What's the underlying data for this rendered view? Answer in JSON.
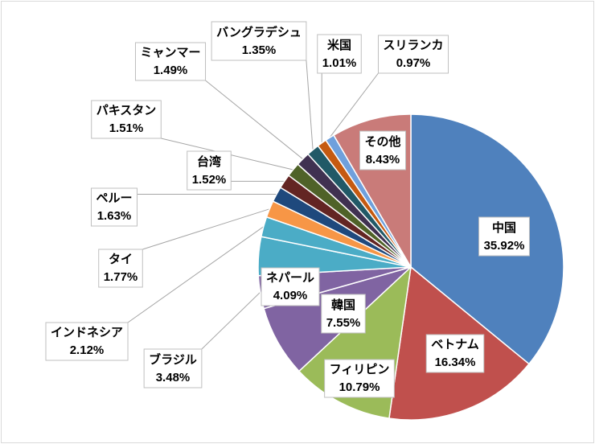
{
  "chart_data": {
    "type": "pie",
    "start_angle_deg": 0,
    "direction": "clockwise",
    "labels": [
      "中国",
      "ベトナム",
      "フィリピン",
      "韓国",
      "ブラジル",
      "ネパール",
      "インドネシア",
      "タイ",
      "ペルー",
      "台湾",
      "パキスタン",
      "ミャンマー",
      "バングラデシュ",
      "米国",
      "スリランカ",
      "その他"
    ],
    "values": [
      35.92,
      16.34,
      10.79,
      7.55,
      3.48,
      4.09,
      2.12,
      1.77,
      1.63,
      1.52,
      1.51,
      1.49,
      1.35,
      1.01,
      0.97,
      8.43
    ],
    "value_labels": [
      "35.92%",
      "16.34%",
      "10.79%",
      "7.55%",
      "3.48%",
      "4.09%",
      "2.12%",
      "1.77%",
      "1.63%",
      "1.52%",
      "1.51%",
      "1.49%",
      "1.35%",
      "1.01%",
      "0.97%",
      "8.43%"
    ],
    "colors": [
      "#4f81bd",
      "#c0504d",
      "#9bbb59",
      "#8064a2",
      "#8064a2",
      "#4bacc6",
      "#4bacc6",
      "#f79646",
      "#1f497d",
      "#632523",
      "#4f6228",
      "#403151",
      "#215967",
      "#c55a11",
      "#6fa0dc",
      "#c97b79"
    ],
    "legend": "none",
    "grid": false
  }
}
